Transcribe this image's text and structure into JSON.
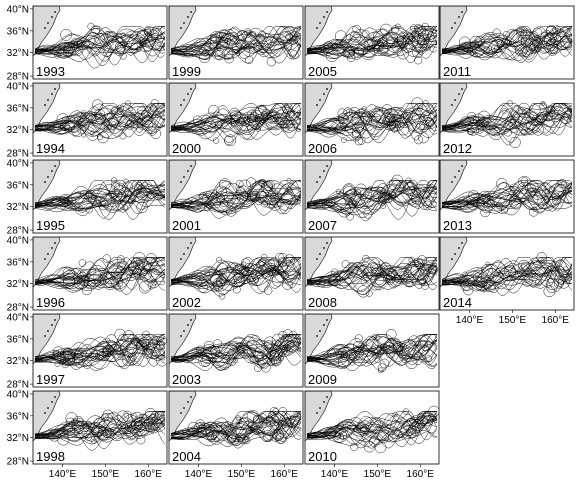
{
  "map": {
    "lat_ticks": [
      "40°N",
      "36°N",
      "32°N",
      "28°N"
    ],
    "lon_ticks": [
      "140°E",
      "150°E",
      "160°E"
    ],
    "land_color": "#d9d9d9",
    "line_color": "#000000",
    "columns": [
      [
        "1993",
        "1994",
        "1995",
        "1996",
        "1997",
        "1998"
      ],
      [
        "1999",
        "2000",
        "2001",
        "2002",
        "2003",
        "2004"
      ],
      [
        "2005",
        "2006",
        "2007",
        "2008",
        "2009",
        "2010"
      ],
      [
        "2011",
        "2012",
        "2013",
        "2014"
      ]
    ]
  }
}
